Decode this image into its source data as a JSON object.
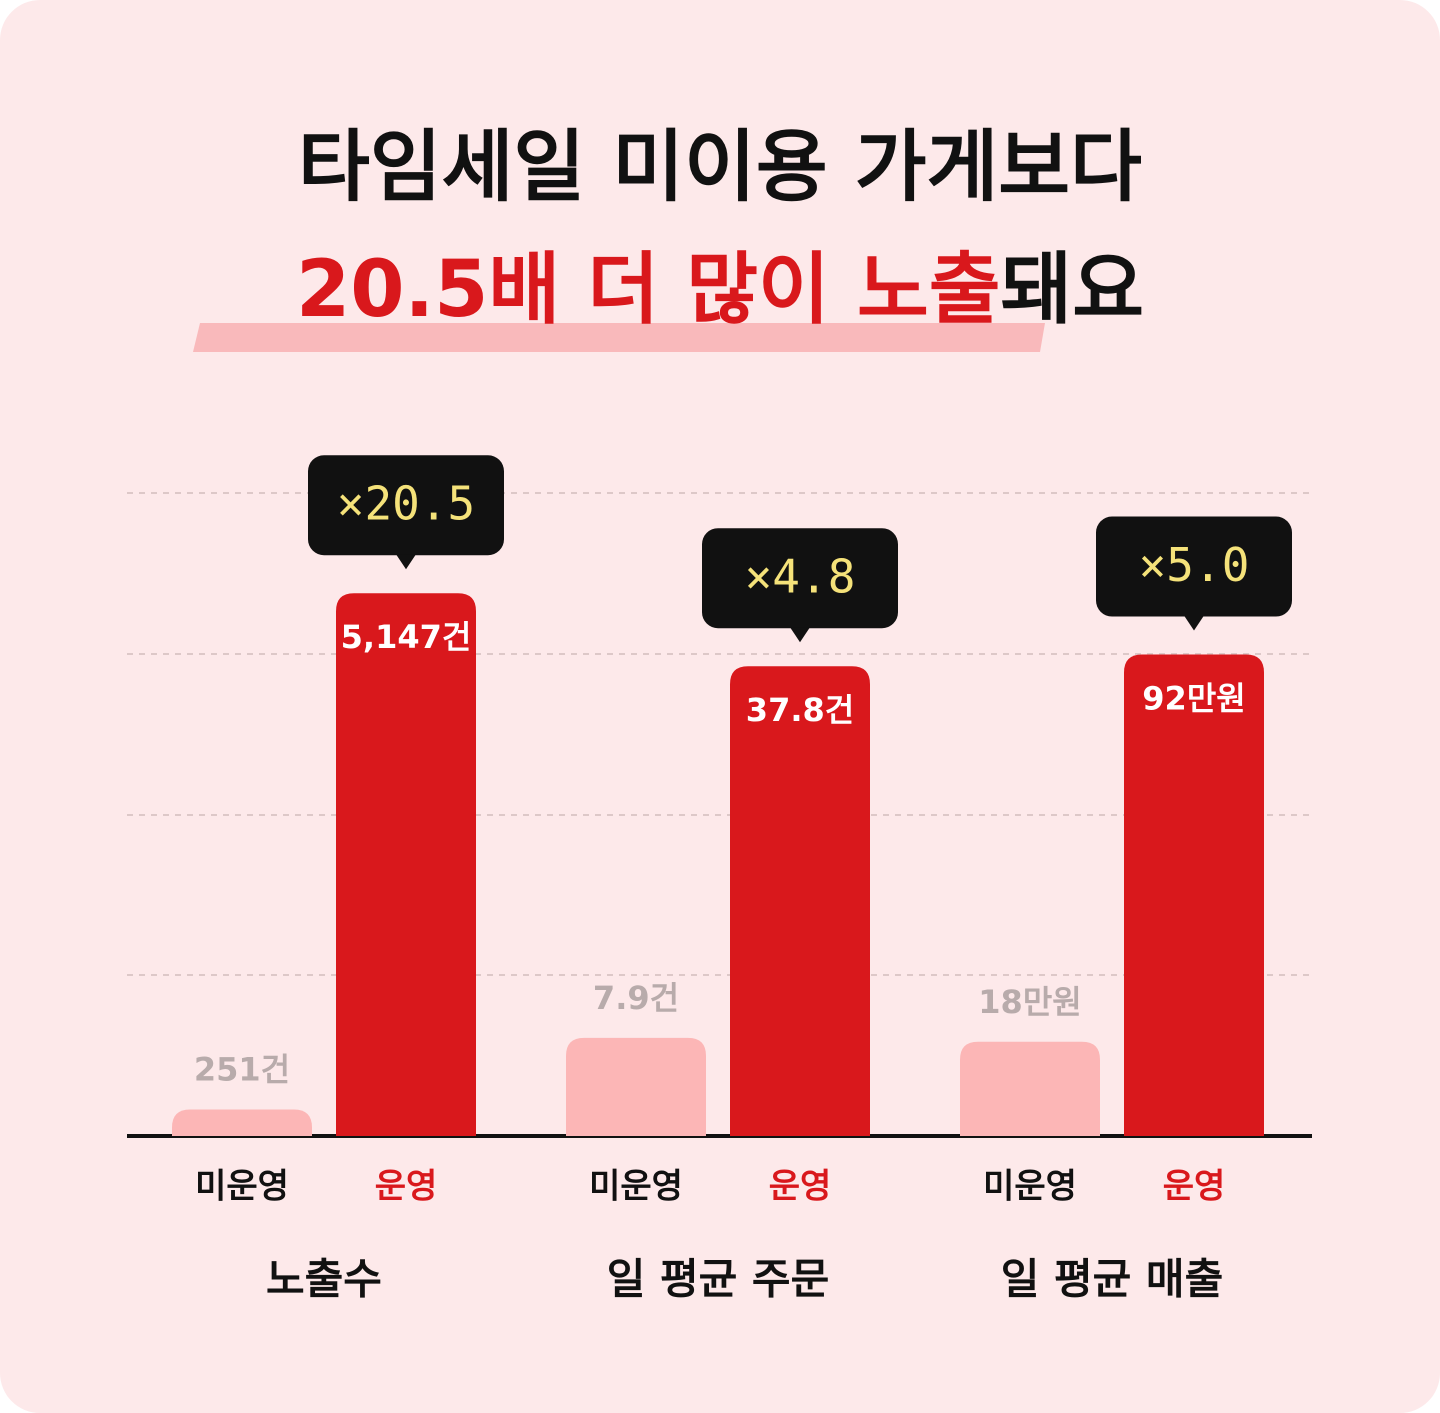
{
  "title": {
    "line1": "타임세일 미이용 가게보다",
    "line2_highlight": "20.5배 더 많이 노출",
    "line2_rest": "돼요"
  },
  "chart_data": [
    {
      "type": "bar",
      "title": "노출수",
      "categories": [
        "미운영",
        "운영"
      ],
      "values": [
        251,
        5147
      ],
      "value_labels": [
        "251건",
        "5,147건"
      ],
      "multiplier_label": "×20.5",
      "colors": [
        "#fcb6b6",
        "#d9181c"
      ],
      "category_colors": [
        "#111111",
        "#d9181c"
      ],
      "ylim": [
        0,
        6600
      ]
    },
    {
      "type": "bar",
      "title": "일 평균 주문",
      "categories": [
        "미운영",
        "운영"
      ],
      "values": [
        7.9,
        37.8
      ],
      "value_labels": [
        "7.9건",
        "37.8건"
      ],
      "multiplier_label": "×4.8",
      "colors": [
        "#fcb6b6",
        "#d9181c"
      ],
      "category_colors": [
        "#111111",
        "#d9181c"
      ],
      "ylim": [
        0,
        56
      ]
    },
    {
      "type": "bar",
      "title": "일 평균 매출",
      "categories": [
        "미운영",
        "운영"
      ],
      "values": [
        18,
        92
      ],
      "value_labels": [
        "18만원",
        "92만원"
      ],
      "multiplier_label": "×5.0",
      "colors": [
        "#fcb6b6",
        "#d9181c"
      ],
      "category_colors": [
        "#111111",
        "#d9181c"
      ],
      "ylim": [
        0,
        133
      ]
    }
  ]
}
